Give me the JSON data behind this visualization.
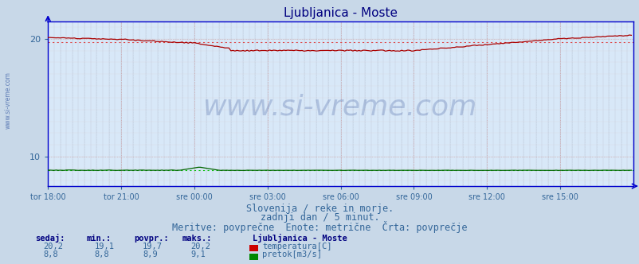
{
  "title": "Ljubljanica - Moste",
  "title_color": "#000080",
  "title_fontsize": 11,
  "bg_color": "#c8d8e8",
  "plot_bg_color": "#d8e8f8",
  "xlim": [
    0,
    288
  ],
  "ylim": [
    7.5,
    21.5
  ],
  "yticks": [
    10,
    20
  ],
  "xtick_labels": [
    "tor 18:00",
    "tor 21:00",
    "sre 00:00",
    "sre 03:00",
    "sre 06:00",
    "sre 09:00",
    "sre 12:00",
    "sre 15:00"
  ],
  "xtick_positions": [
    0,
    36,
    72,
    108,
    144,
    180,
    216,
    252
  ],
  "temp_color": "#aa0000",
  "temp_dotted_color": "#dd4444",
  "flow_color": "#006600",
  "flow_dotted_color": "#00bb00",
  "axis_color": "#0000cc",
  "tick_color": "#336699",
  "watermark": "www.si-vreme.com",
  "watermark_color": "#1a3a8a",
  "watermark_fontsize": 26,
  "subtitle1": "Slovenija / reke in morje.",
  "subtitle2": "zadnji dan / 5 minut.",
  "subtitle3": "Meritve: povprečne  Enote: metrične  Črta: povprečje",
  "subtitle_color": "#336699",
  "subtitle_fontsize": 8.5,
  "table_header": [
    "sedaj:",
    "min.:",
    "povpr.:",
    "maks.:"
  ],
  "table_header_color": "#000080",
  "table_color": "#336699",
  "station_name": "Ljubljanica - Moste",
  "temp_row": [
    "20,2",
    "19,1",
    "19,7",
    "20,2"
  ],
  "flow_row": [
    "8,8",
    "8,8",
    "8,9",
    "9,1"
  ],
  "legend_temp": "temperatura[C]",
  "legend_flow": "pretok[m3/s]",
  "temp_avg": 19.7,
  "flow_avg": 8.85
}
